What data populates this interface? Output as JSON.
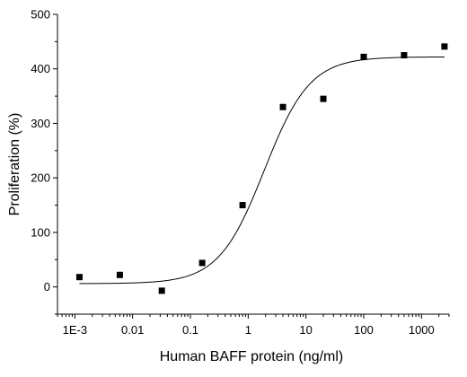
{
  "chart_data": {
    "type": "scatter",
    "title": "",
    "xlabel": "Human BAFF protein (ng/ml)",
    "ylabel": "Proliferation (%)",
    "x_scale": "log",
    "xlim": [
      0.0005,
      3000
    ],
    "ylim": [
      -50,
      500
    ],
    "x_ticks": [
      0.001,
      0.01,
      0.1,
      1,
      10,
      100,
      1000
    ],
    "x_tick_labels": [
      "1E-3",
      "0.01",
      "0.1",
      "1",
      "10",
      "100",
      "1000"
    ],
    "y_ticks": [
      0,
      100,
      200,
      300,
      400,
      500
    ],
    "y_tick_labels": [
      "0",
      "100",
      "200",
      "300",
      "400",
      "500"
    ],
    "grid": false,
    "legend": "none",
    "series": [
      {
        "marker": "square",
        "color": "#000000",
        "x": [
          0.0012,
          0.006,
          0.032,
          0.16,
          0.8,
          4,
          20,
          100,
          500,
          2500
        ],
        "y": [
          18,
          22,
          -7,
          44,
          150,
          330,
          345,
          422,
          425,
          441
        ]
      }
    ],
    "fit_curve": {
      "model": "4PL",
      "color": "#000000",
      "bottom": 6,
      "top": 422,
      "ec50": 1.9,
      "hill": 1.1,
      "x_range": [
        0.0012,
        2500
      ]
    }
  }
}
